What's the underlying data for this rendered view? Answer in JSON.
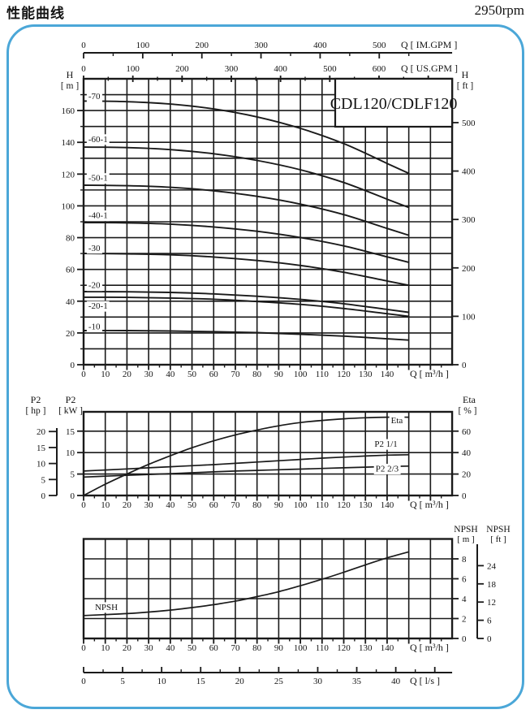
{
  "page": {
    "title": "性能曲线",
    "rpm": "2950rpm",
    "accent_color": "#4ba7d8",
    "ink_color": "#1a1a1a"
  },
  "model_box": {
    "label": "CDL120/CDLF120"
  },
  "top_axes": {
    "im_gpm": {
      "label": "Q [ IM.GPM ]",
      "ticks": [
        0,
        100,
        200,
        300,
        400,
        500
      ]
    },
    "us_gpm": {
      "label": "Q [ US.GPM ]",
      "ticks": [
        0,
        100,
        200,
        300,
        400,
        500,
        600
      ]
    }
  },
  "chart_data": [
    {
      "id": "head",
      "type": "line",
      "title": "CDL120/CDLF120",
      "x_axis": {
        "label": "Q [ m³/h ]",
        "ticks": [
          0,
          10,
          20,
          30,
          40,
          50,
          60,
          70,
          80,
          90,
          100,
          110,
          120,
          130,
          140
        ],
        "range": [
          0,
          170
        ]
      },
      "y_left": {
        "title": "H",
        "unit": "[ m ]",
        "ticks": [
          0,
          20,
          40,
          60,
          80,
          100,
          120,
          140,
          160
        ],
        "range": [
          0,
          180
        ]
      },
      "y_right": {
        "title": "H",
        "unit": "[ ft ]",
        "ticks": [
          0,
          100,
          200,
          300,
          400,
          500
        ],
        "m_per_unit": 0.3048
      },
      "x": [
        0,
        20,
        40,
        60,
        80,
        100,
        120,
        140,
        150
      ],
      "series": [
        {
          "name": "-70",
          "label_at": [
            2.2,
            169
          ],
          "y": [
            166,
            165.6,
            164.1,
            161.0,
            156.0,
            148.8,
            139.2,
            126.7,
            120.5
          ]
        },
        {
          "name": "-60-1",
          "label_at": [
            2.2,
            142
          ],
          "y": [
            137,
            136.7,
            135.4,
            132.8,
            128.6,
            122.7,
            114.7,
            104.2,
            99
          ]
        },
        {
          "name": "-50-1",
          "label_at": [
            2.2,
            117.5
          ],
          "y": [
            113,
            112.7,
            111.7,
            109.5,
            106.0,
            101.1,
            94.5,
            85.8,
            81.5
          ]
        },
        {
          "name": "-40-1",
          "label_at": [
            2.2,
            94
          ],
          "y": [
            89.5,
            89.3,
            88.5,
            86.7,
            84.0,
            80.1,
            74.8,
            67.9,
            64.5
          ]
        },
        {
          "name": "-30",
          "label_at": [
            2.2,
            73.5
          ],
          "y": [
            70,
            69.8,
            69.2,
            67.8,
            65.6,
            62.5,
            58.2,
            52.7,
            50
          ]
        },
        {
          "name": "-20",
          "label_at": [
            2.2,
            50
          ],
          "y": [
            46,
            45.9,
            45.5,
            44.6,
            43.1,
            41.1,
            38.4,
            34.8,
            33
          ]
        },
        {
          "name": "-20-1",
          "label_at": [
            2.2,
            37
          ],
          "y": [
            42.5,
            42.4,
            42.0,
            41.2,
            39.8,
            38.0,
            35.4,
            32.1,
            30.5
          ]
        },
        {
          "name": "-10",
          "label_at": [
            2.2,
            24
          ],
          "y": [
            21.5,
            21.5,
            21.2,
            20.8,
            20.2,
            19.2,
            18.0,
            16.3,
            15.5
          ]
        }
      ]
    },
    {
      "id": "power",
      "type": "line",
      "x_axis": {
        "label": "Q [ m³/h ]",
        "ticks": [
          0,
          10,
          20,
          30,
          40,
          50,
          60,
          70,
          80,
          90,
          100,
          110,
          120,
          130,
          140
        ],
        "range": [
          0,
          170
        ]
      },
      "y_left_outer": {
        "title": "P2",
        "unit": "[ hp ]",
        "ticks": [
          0,
          5,
          10,
          15,
          20
        ],
        "kw_per_unit": 0.7457
      },
      "y_left": {
        "title": "P2",
        "unit": "[ kW ]",
        "ticks": [
          0,
          5,
          10,
          15
        ],
        "range": [
          0,
          19.5
        ]
      },
      "y_right": {
        "title": "Eta",
        "unit": "[ % ]",
        "ticks": [
          0,
          20,
          40,
          60
        ],
        "range": [
          0,
          78
        ]
      },
      "x": [
        0,
        10,
        20,
        30,
        40,
        50,
        60,
        70,
        80,
        90,
        100,
        110,
        120,
        130,
        140,
        150
      ],
      "series": [
        {
          "name": "Eta",
          "axis": "eta",
          "label_at": [
            144.5,
            70
          ],
          "y": [
            0,
            10.5,
            20,
            29,
            37,
            44.5,
            51,
            56.5,
            61,
            65,
            68,
            70,
            71.5,
            72.5,
            73,
            73
          ]
        },
        {
          "name": "P2 1/1",
          "axis": "kw",
          "label_at": [
            139.5,
            12.0
          ],
          "y": [
            5.7,
            5.95,
            6.2,
            6.45,
            6.7,
            6.95,
            7.2,
            7.5,
            7.8,
            8.1,
            8.4,
            8.7,
            8.95,
            9.2,
            9.4,
            9.5
          ]
        },
        {
          "name": "P2 2/3",
          "axis": "kw",
          "label_at": [
            140,
            6.25
          ],
          "y": [
            4.3,
            4.5,
            4.7,
            4.9,
            5.1,
            5.3,
            5.5,
            5.7,
            5.85,
            6.0,
            6.15,
            6.3,
            6.45,
            6.6,
            6.75,
            6.85
          ]
        }
      ]
    },
    {
      "id": "npsh",
      "type": "line",
      "x_axis": {
        "label": "Q [ m³/h ]",
        "ticks": [
          0,
          10,
          20,
          30,
          40,
          50,
          60,
          70,
          80,
          90,
          100,
          110,
          120,
          130,
          140
        ],
        "range": [
          0,
          170
        ]
      },
      "y_right_m": {
        "title": "NPSH",
        "unit": "[ m ]",
        "ticks": [
          0,
          2,
          4,
          6,
          8
        ],
        "range": [
          0,
          10
        ]
      },
      "y_right_ft": {
        "title": "NPSH",
        "unit": "[ ft ]",
        "ticks": [
          0,
          6,
          12,
          18,
          24
        ],
        "m_per_unit": 0.3048
      },
      "x": [
        0,
        10,
        20,
        30,
        40,
        50,
        60,
        70,
        80,
        90,
        100,
        110,
        120,
        130,
        140,
        150
      ],
      "series": [
        {
          "name": "NPSH",
          "axis": "m",
          "label_at": [
            10.5,
            3.15
          ],
          "y": [
            2.3,
            2.4,
            2.5,
            2.65,
            2.85,
            3.1,
            3.4,
            3.75,
            4.2,
            4.7,
            5.3,
            5.95,
            6.65,
            7.4,
            8.1,
            8.7
          ]
        }
      ]
    }
  ],
  "bottom_axis": {
    "label": "Q [ l/s ]",
    "ticks": [
      0,
      5,
      10,
      15,
      20,
      25,
      30,
      35,
      40
    ]
  }
}
